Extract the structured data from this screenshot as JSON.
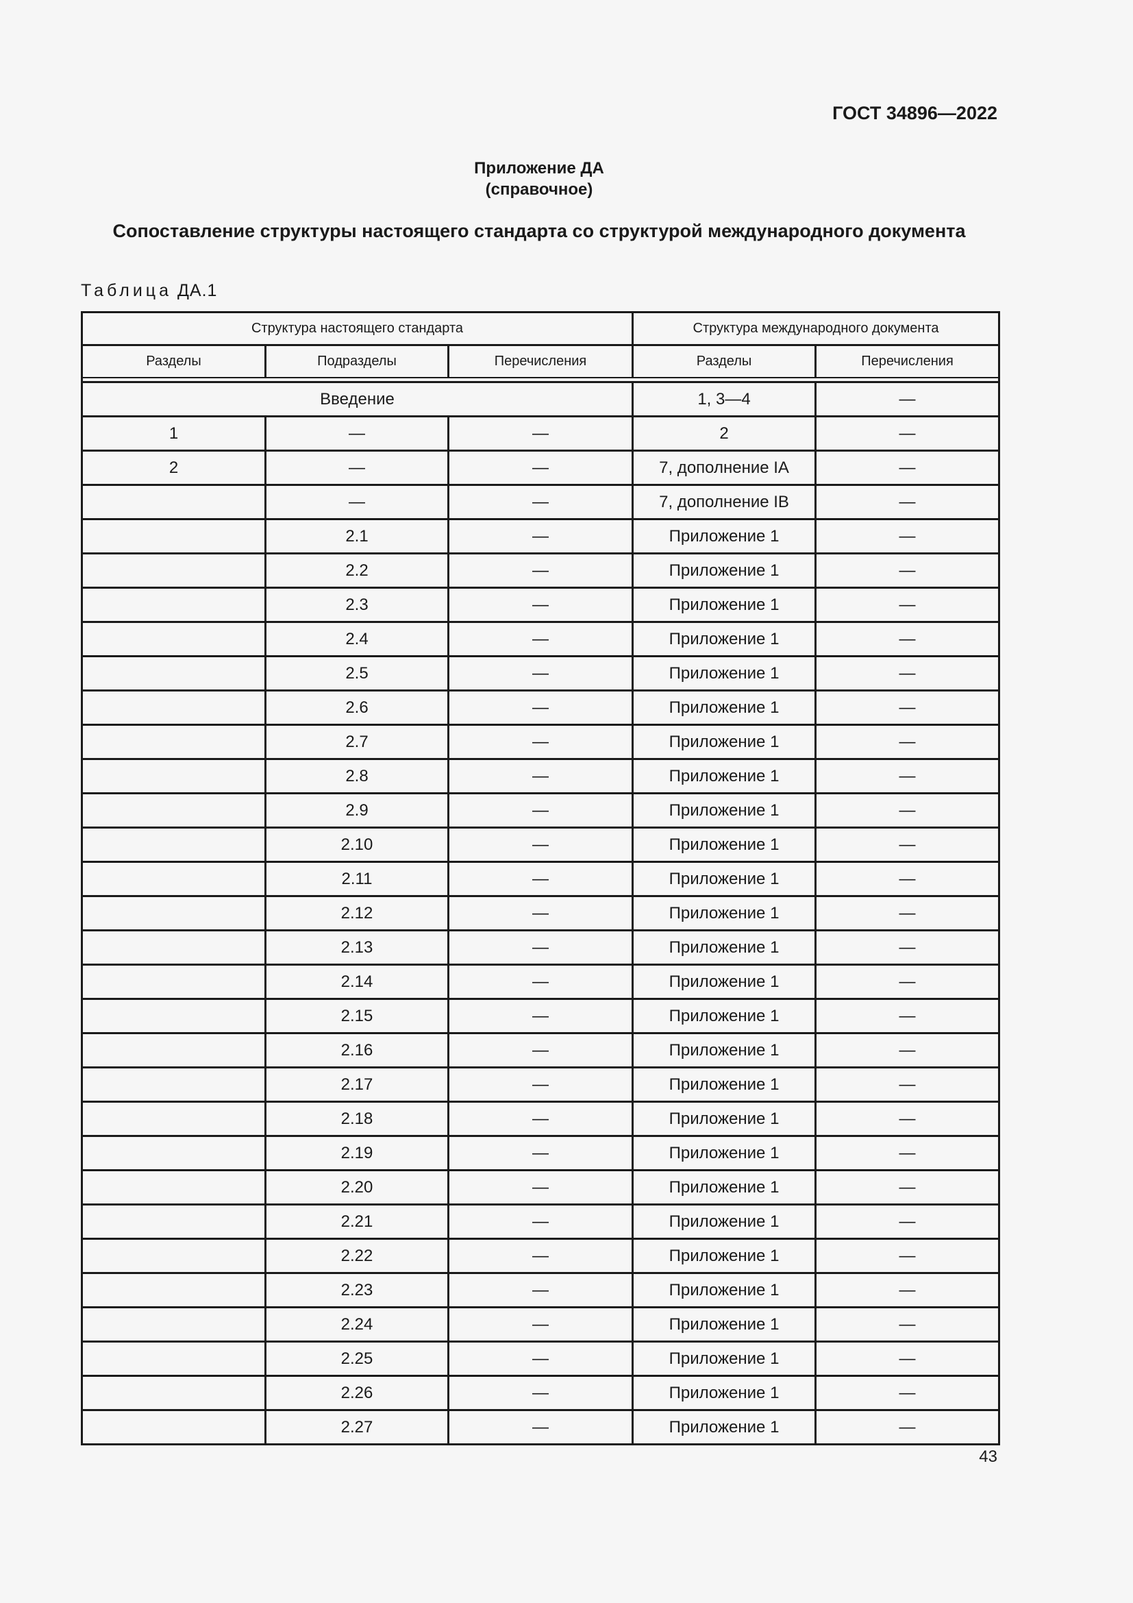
{
  "header": {
    "doc_code": "ГОСТ 34896—2022"
  },
  "annex": {
    "title": "Приложение ДА",
    "subtitle": "(справочное)"
  },
  "title": "Сопоставление структуры настоящего стандарта со структурой международного документа",
  "table": {
    "label_word": "Таблица",
    "label_num": "ДА.1",
    "group_headers": [
      "Структура настоящего стандарта",
      "Структура международного документа"
    ],
    "columns": [
      "Разделы",
      "Подразделы",
      "Перечисления",
      "Разделы",
      "Перечисления"
    ],
    "intro_row": {
      "label": "Введение",
      "intl_sections": "1, 3—4",
      "intl_enum": "—"
    },
    "rows": [
      [
        "1",
        "—",
        "—",
        "2",
        "—"
      ],
      [
        "2",
        "—",
        "—",
        "7, дополнение IA",
        "—"
      ],
      [
        "",
        "—",
        "—",
        "7, дополнение IB",
        "—"
      ],
      [
        "",
        "2.1",
        "—",
        "Приложение 1",
        "—"
      ],
      [
        "",
        "2.2",
        "—",
        "Приложение 1",
        "—"
      ],
      [
        "",
        "2.3",
        "—",
        "Приложение 1",
        "—"
      ],
      [
        "",
        "2.4",
        "—",
        "Приложение 1",
        "—"
      ],
      [
        "",
        "2.5",
        "—",
        "Приложение 1",
        "—"
      ],
      [
        "",
        "2.6",
        "—",
        "Приложение 1",
        "—"
      ],
      [
        "",
        "2.7",
        "—",
        "Приложение 1",
        "—"
      ],
      [
        "",
        "2.8",
        "—",
        "Приложение 1",
        "—"
      ],
      [
        "",
        "2.9",
        "—",
        "Приложение 1",
        "—"
      ],
      [
        "",
        "2.10",
        "—",
        "Приложение 1",
        "—"
      ],
      [
        "",
        "2.11",
        "—",
        "Приложение 1",
        "—"
      ],
      [
        "",
        "2.12",
        "—",
        "Приложение 1",
        "—"
      ],
      [
        "",
        "2.13",
        "—",
        "Приложение 1",
        "—"
      ],
      [
        "",
        "2.14",
        "—",
        "Приложение 1",
        "—"
      ],
      [
        "",
        "2.15",
        "—",
        "Приложение 1",
        "—"
      ],
      [
        "",
        "2.16",
        "—",
        "Приложение 1",
        "—"
      ],
      [
        "",
        "2.17",
        "—",
        "Приложение 1",
        "—"
      ],
      [
        "",
        "2.18",
        "—",
        "Приложение 1",
        "—"
      ],
      [
        "",
        "2.19",
        "—",
        "Приложение 1",
        "—"
      ],
      [
        "",
        "2.20",
        "—",
        "Приложение 1",
        "—"
      ],
      [
        "",
        "2.21",
        "—",
        "Приложение 1",
        "—"
      ],
      [
        "",
        "2.22",
        "—",
        "Приложение 1",
        "—"
      ],
      [
        "",
        "2.23",
        "—",
        "Приложение 1",
        "—"
      ],
      [
        "",
        "2.24",
        "—",
        "Приложение 1",
        "—"
      ],
      [
        "",
        "2.25",
        "—",
        "Приложение 1",
        "—"
      ],
      [
        "",
        "2.26",
        "—",
        "Приложение 1",
        "—"
      ],
      [
        "",
        "2.27",
        "—",
        "Приложение 1",
        "—"
      ]
    ]
  },
  "page_number": "43"
}
